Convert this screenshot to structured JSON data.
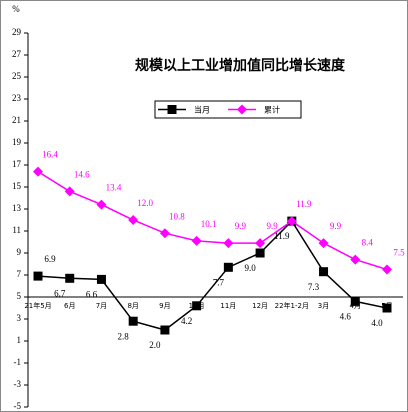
{
  "chart_data": {
    "type": "line",
    "title": "规模以上工业增加值同比增长速度",
    "y_label": "%",
    "categories": [
      "21年5月",
      "6月",
      "7月",
      "8月",
      "9月",
      "10月",
      "11月",
      "12月",
      "22年1-2月",
      "3月",
      "4月",
      "5月"
    ],
    "series": [
      {
        "name": "当月",
        "color": "#000000",
        "marker": "square",
        "values": [
          6.9,
          6.7,
          6.6,
          2.8,
          2.0,
          4.2,
          7.7,
          9.0,
          11.9,
          7.3,
          4.6,
          4.0
        ],
        "value_labels": [
          "6.9",
          "6.7",
          "6.6",
          "2.8",
          "2.0",
          "4.2",
          "7.7",
          "9.0",
          "11.9",
          "7.3",
          "4.6",
          "4.0"
        ]
      },
      {
        "name": "累计",
        "color": "#ff00ff",
        "marker": "diamond",
        "values": [
          16.4,
          14.6,
          13.4,
          12.0,
          10.8,
          10.1,
          9.9,
          9.9,
          11.9,
          9.9,
          8.4,
          7.5
        ],
        "value_labels": [
          "16.4",
          "14.6",
          "13.4",
          "12.0",
          "10.8",
          "10.1",
          "9.9",
          "9.9",
          "11.9",
          "9.9",
          "8.4",
          "7.5"
        ]
      }
    ],
    "ylim": [
      -5,
      29
    ],
    "yticks": [
      -5,
      -3,
      -1,
      1,
      3,
      5,
      7,
      9,
      11,
      13,
      15,
      17,
      19,
      21,
      23,
      25,
      27,
      29
    ],
    "x_axis_at": 5
  }
}
